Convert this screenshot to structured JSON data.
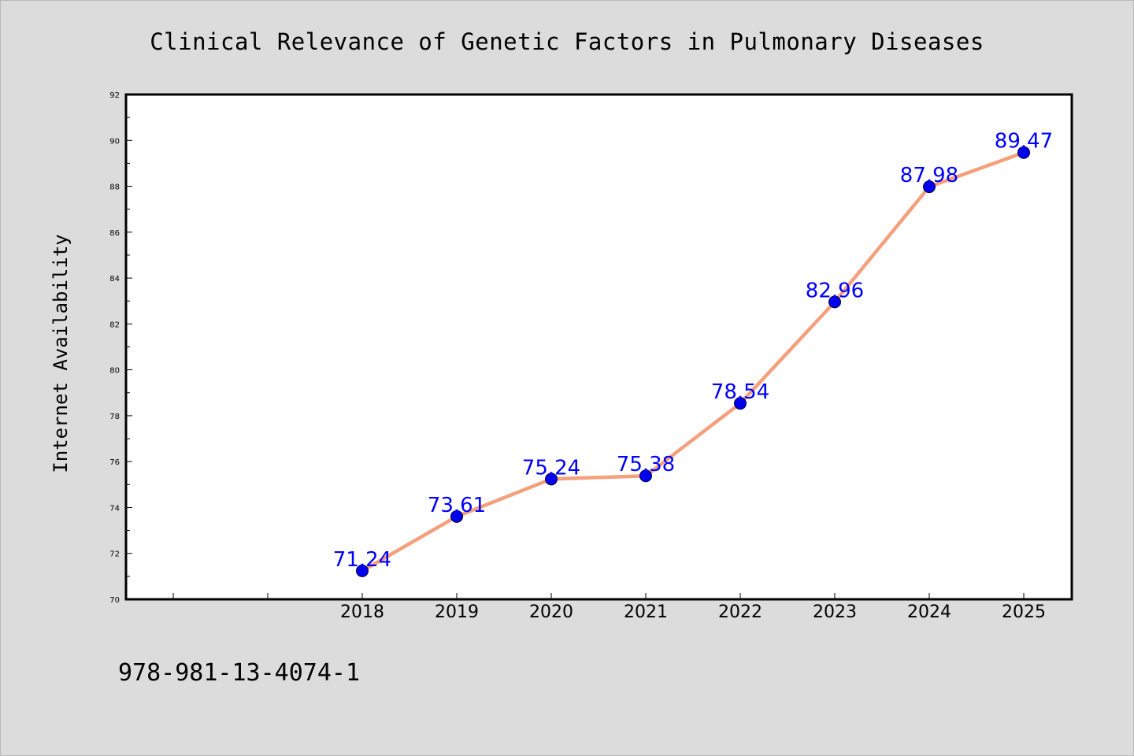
{
  "chart_data": {
    "type": "line",
    "title": "Clinical Relevance of Genetic Factors in Pulmonary Diseases",
    "xlabel": "",
    "ylabel": "Internet Availability",
    "categories": [
      "2018",
      "2019",
      "2020",
      "2021",
      "2022",
      "2023",
      "2024",
      "2025"
    ],
    "values": [
      71.24,
      73.61,
      75.24,
      75.38,
      78.54,
      82.96,
      87.98,
      89.47
    ],
    "data_labels": [
      "71.24",
      "73.61",
      "75.24",
      "75.38",
      "78.54",
      "82.96",
      "87.98",
      "89.47"
    ],
    "ylim": [
      70,
      92
    ],
    "yticks": [
      "70",
      "72",
      "74",
      "76",
      "78",
      "80",
      "82",
      "84",
      "86",
      "88",
      "90",
      "92"
    ],
    "grid": false,
    "legend": "none",
    "line_color": "#f4a07c",
    "marker_color": "#0000ee",
    "label_color": "#0000ff"
  },
  "footer": {
    "isbn": "978-981-13-4074-1"
  }
}
